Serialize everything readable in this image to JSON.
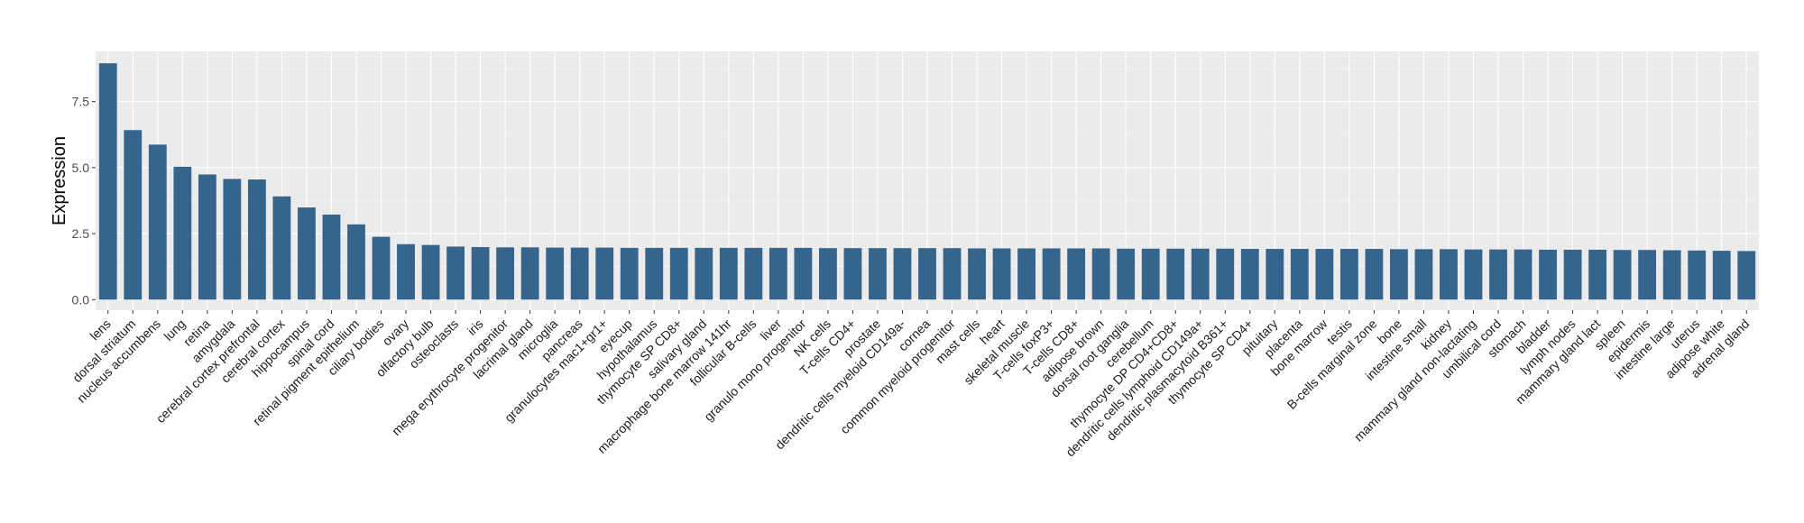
{
  "chart_data": {
    "type": "bar",
    "ylabel": "Expression",
    "xlabel": "",
    "ylim": [
      -0.4,
      9.4
    ],
    "yticks": [
      "0.0",
      "2.5",
      "5.0",
      "7.5"
    ],
    "grid": true,
    "bar_color": "#35658d",
    "panel_color": "#ebebeb",
    "categories": [
      "lens",
      "dorsal striatum",
      "nucleus accumbens",
      "lung",
      "retina",
      "amygdala",
      "cerebral cortex prefrontal",
      "cerebral cortex",
      "hippocampus",
      "spinal cord",
      "retinal pigment epithelium",
      "ciliary bodies",
      "ovary",
      "olfactory bulb",
      "osteoclasts",
      "iris",
      "mega erythrocyte progenitor",
      "lacrimal gland",
      "microglia",
      "pancreas",
      "granulocytes mac1+gr1+",
      "eyecup",
      "hypothalamus",
      "thymocyte SP CD8+",
      "salivary gland",
      "macrophage bone marrow 141hr",
      "follicular B-cells",
      "liver",
      "granulo mono progenitor",
      "NK cells",
      "T-cells CD4+",
      "prostate",
      "dendritic cells myeloid CD149a-",
      "cornea",
      "common myeloid progenitor",
      "mast cells",
      "heart",
      "skeletal muscle",
      "T-cells foxP3+",
      "T-cells CD8+",
      "adipose brown",
      "dorsal root ganglia",
      "cerebellum",
      "thymocyte DP CD4+CD8+",
      "dendritic cells lymphoid CD149a+",
      "dendritic plasmacytoid B361+",
      "thymocyte SP CD4+",
      "pituitary",
      "placenta",
      "bone marrow",
      "testis",
      "B-cells marginal zone",
      "bone",
      "intestine small",
      "kidney",
      "mammary gland non-lactating",
      "umbilical cord",
      "stomach",
      "bladder",
      "lymph nodes",
      "mammary gland  lact",
      "spleen",
      "epidermis",
      "intestine large",
      "uterus",
      "adipose white",
      "adrenal gland"
    ],
    "values": [
      8.95,
      6.42,
      5.87,
      5.03,
      4.74,
      4.57,
      4.55,
      3.91,
      3.49,
      3.22,
      2.85,
      2.38,
      2.1,
      2.07,
      2.01,
      1.99,
      1.98,
      1.98,
      1.97,
      1.97,
      1.97,
      1.96,
      1.96,
      1.96,
      1.96,
      1.96,
      1.96,
      1.96,
      1.96,
      1.95,
      1.95,
      1.95,
      1.95,
      1.95,
      1.95,
      1.94,
      1.94,
      1.94,
      1.94,
      1.94,
      1.94,
      1.93,
      1.93,
      1.93,
      1.93,
      1.93,
      1.92,
      1.92,
      1.92,
      1.92,
      1.92,
      1.92,
      1.91,
      1.91,
      1.91,
      1.9,
      1.9,
      1.9,
      1.89,
      1.89,
      1.89,
      1.88,
      1.88,
      1.87,
      1.86,
      1.85,
      1.84
    ]
  }
}
